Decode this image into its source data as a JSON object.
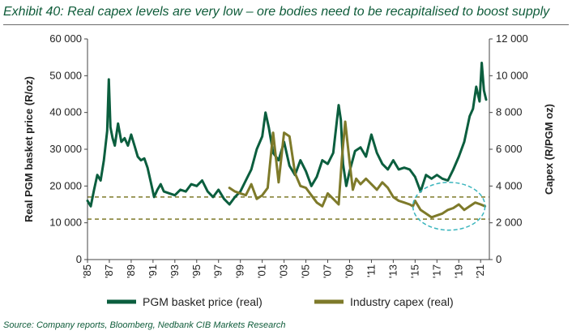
{
  "title": "Exhibit 40: Real capex levels are very low – ore bodies need to be recapitalised to boost supply",
  "source": "Source: Company reports, Bloomberg, Nedbank CIB Markets Research",
  "colors": {
    "price": "#0b5e3e",
    "capex": "#7e7a2a",
    "axis": "#444444",
    "highlight": "#3ab5bd"
  },
  "chart_data": {
    "type": "line",
    "title": "Exhibit 40: Real capex levels are very low – ore bodies need to be recapitalised to boost supply",
    "xlabel": "",
    "ylabel": "Real PGM basket price (R/oz)",
    "y2label": "Capex (R/PGM oz)",
    "xlim": [
      1985,
      2021.8
    ],
    "ylim": [
      0,
      60000
    ],
    "y2lim": [
      0,
      12000
    ],
    "x_ticks": [
      "'85",
      "'87",
      "'89",
      "'91",
      "'93",
      "'95",
      "'97",
      "'99",
      "'01",
      "'03",
      "'05",
      "'07",
      "'09",
      "'11",
      "'13",
      "'15",
      "'17",
      "'19",
      "'21"
    ],
    "y_ticks": [
      "0",
      "10 000",
      "20 000",
      "30 000",
      "40 000",
      "50 000",
      "60 000"
    ],
    "y2_ticks": [
      "0",
      "2 000",
      "4 000",
      "6 000",
      "8 000",
      "10 000",
      "12 000"
    ],
    "reference_lines": [
      {
        "axis": "y",
        "value": 17000,
        "style": "dashed"
      },
      {
        "axis": "y",
        "value": 11000,
        "style": "dashed"
      }
    ],
    "annotations": [
      {
        "type": "ellipse",
        "x_range": [
          2014.8,
          2021.4
        ],
        "y_range": [
          8000,
          21000
        ]
      }
    ],
    "legend": "bottom",
    "series": [
      {
        "name": "PGM basket price (real)",
        "axis": "left",
        "x": [
          1985,
          1985.3,
          1985.6,
          1985.9,
          1986.2,
          1986.5,
          1986.8,
          1986.95,
          1987.1,
          1987.3,
          1987.5,
          1987.8,
          1988.1,
          1988.4,
          1988.7,
          1989,
          1989.3,
          1989.6,
          1989.9,
          1990.2,
          1990.5,
          1990.8,
          1991.1,
          1991.4,
          1991.7,
          1992,
          1992.5,
          1993,
          1993.5,
          1994,
          1994.5,
          1995,
          1995.5,
          1996,
          1996.5,
          1997,
          1997.5,
          1998,
          1998.5,
          1999,
          1999.5,
          2000,
          2000.5,
          2001,
          2001.3,
          2001.6,
          2002,
          2002.5,
          2003,
          2003.5,
          2004,
          2004.5,
          2005,
          2005.5,
          2006,
          2006.5,
          2007,
          2007.5,
          2008,
          2008.2,
          2008.4,
          2008.7,
          2009,
          2009.5,
          2010,
          2010.5,
          2011,
          2011.5,
          2012,
          2012.5,
          2013,
          2013.5,
          2014,
          2014.5,
          2015,
          2015.5,
          2016,
          2016.5,
          2017,
          2017.5,
          2018,
          2018.5,
          2019,
          2019.5,
          2020,
          2020.3,
          2020.6,
          2020.9,
          2021.1,
          2021.3,
          2021.5
        ],
        "y": [
          16000,
          14500,
          19000,
          23000,
          21500,
          27000,
          35000,
          49000,
          36000,
          33000,
          31000,
          37000,
          32000,
          33000,
          31000,
          34000,
          31000,
          28000,
          27000,
          27500,
          25000,
          21000,
          17000,
          19000,
          20500,
          18500,
          18000,
          17500,
          19000,
          18500,
          20500,
          20000,
          21500,
          18500,
          17000,
          19000,
          16500,
          15000,
          17000,
          18500,
          21500,
          24500,
          30000,
          33500,
          40000,
          36000,
          29000,
          27000,
          32000,
          25500,
          23000,
          27000,
          24000,
          20000,
          22500,
          27000,
          26000,
          29000,
          42000,
          38000,
          26000,
          20000,
          24000,
          29500,
          30500,
          28000,
          34000,
          29000,
          26000,
          24500,
          27000,
          24500,
          25000,
          24500,
          22500,
          18500,
          23000,
          22000,
          23000,
          22000,
          21500,
          24500,
          28000,
          32000,
          39000,
          41000,
          47000,
          43000,
          53500,
          46000,
          43500
        ]
      },
      {
        "name": "Industry capex (real)",
        "axis": "right",
        "x": [
          1998,
          1998.5,
          1999,
          1999.5,
          2000,
          2000.5,
          2001,
          2001.5,
          2002,
          2002.5,
          2003,
          2003.5,
          2004,
          2004.5,
          2005,
          2005.5,
          2006,
          2006.5,
          2007,
          2007.5,
          2008,
          2008.3,
          2008.6,
          2009,
          2009.3,
          2009.6,
          2010,
          2010.5,
          2011,
          2011.5,
          2012,
          2012.5,
          2013,
          2013.5,
          2014,
          2014.5,
          2014.8,
          2015,
          2015.5,
          2016,
          2016.5,
          2017,
          2017.5,
          2018,
          2018.5,
          2019,
          2019.5,
          2020,
          2020.5,
          2021,
          2021.4
        ],
        "y": [
          3900,
          3700,
          3600,
          3500,
          4100,
          3300,
          3500,
          3900,
          6900,
          4200,
          6900,
          6700,
          4700,
          4000,
          3900,
          3500,
          3100,
          2900,
          3600,
          3300,
          3000,
          5500,
          7500,
          5300,
          3800,
          4400,
          4100,
          4400,
          4100,
          3800,
          4200,
          3900,
          3400,
          3200,
          3100,
          3000,
          2900,
          3200,
          2700,
          2500,
          2300,
          2400,
          2500,
          2700,
          2800,
          3000,
          2700,
          2900,
          3100,
          3000,
          2900
        ]
      }
    ]
  }
}
